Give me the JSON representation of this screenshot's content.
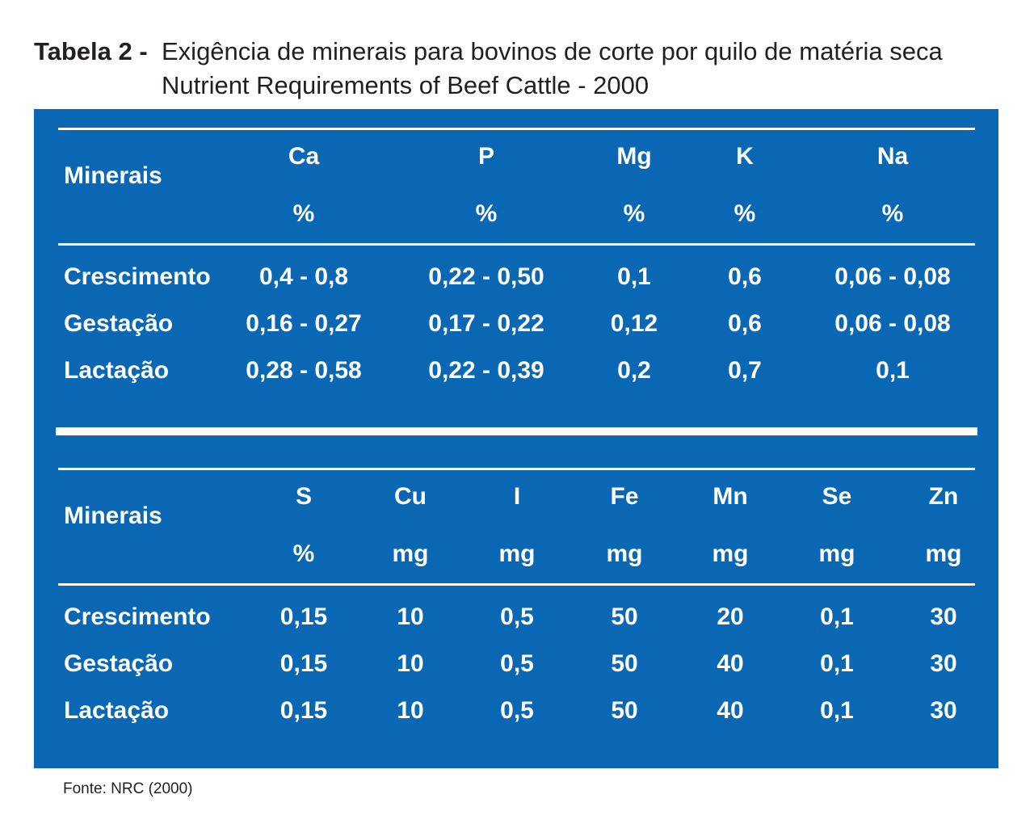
{
  "caption": {
    "label": "Tabela 2 -",
    "title": "Exigência de minerais para bovinos de corte por quilo de matéria seca",
    "subtitle": "Nutrient Requirements of Beef Cattle - 2000"
  },
  "table1": {
    "header_label": "Minerais",
    "columns": [
      {
        "name": "Ca",
        "unit": "%"
      },
      {
        "name": "P",
        "unit": "%"
      },
      {
        "name": "Mg",
        "unit": "%"
      },
      {
        "name": "K",
        "unit": "%"
      },
      {
        "name": "Na",
        "unit": "%"
      }
    ],
    "rows": [
      {
        "label": "Crescimento",
        "values": [
          "0,4 - 0,8",
          "0,22 - 0,50",
          "0,1",
          "0,6",
          "0,06 - 0,08"
        ]
      },
      {
        "label": "Gestação",
        "values": [
          "0,16 - 0,27",
          "0,17 - 0,22",
          "0,12",
          "0,6",
          "0,06 - 0,08"
        ]
      },
      {
        "label": "Lactação",
        "values": [
          "0,28 - 0,58",
          "0,22 - 0,39",
          "0,2",
          "0,7",
          "0,1"
        ]
      }
    ]
  },
  "table2": {
    "header_label": "Minerais",
    "columns": [
      {
        "name": "S",
        "unit": "%"
      },
      {
        "name": "Cu",
        "unit": "mg"
      },
      {
        "name": "I",
        "unit": "mg"
      },
      {
        "name": "Fe",
        "unit": "mg"
      },
      {
        "name": "Mn",
        "unit": "mg"
      },
      {
        "name": "Se",
        "unit": "mg"
      },
      {
        "name": "Zn",
        "unit": "mg"
      }
    ],
    "rows": [
      {
        "label": "Crescimento",
        "values": [
          "0,15",
          "10",
          "0,5",
          "50",
          "20",
          "0,1",
          "30"
        ]
      },
      {
        "label": "Gestação",
        "values": [
          "0,15",
          "10",
          "0,5",
          "50",
          "40",
          "0,1",
          "30"
        ]
      },
      {
        "label": "Lactação",
        "values": [
          "0,15",
          "10",
          "0,5",
          "50",
          "40",
          "0,1",
          "30"
        ]
      }
    ]
  },
  "source": "Fonte: NRC (2000)",
  "colors": {
    "panel": "#0a67b3",
    "text_on_panel": "#ffffff",
    "caption_text": "#231f20"
  }
}
